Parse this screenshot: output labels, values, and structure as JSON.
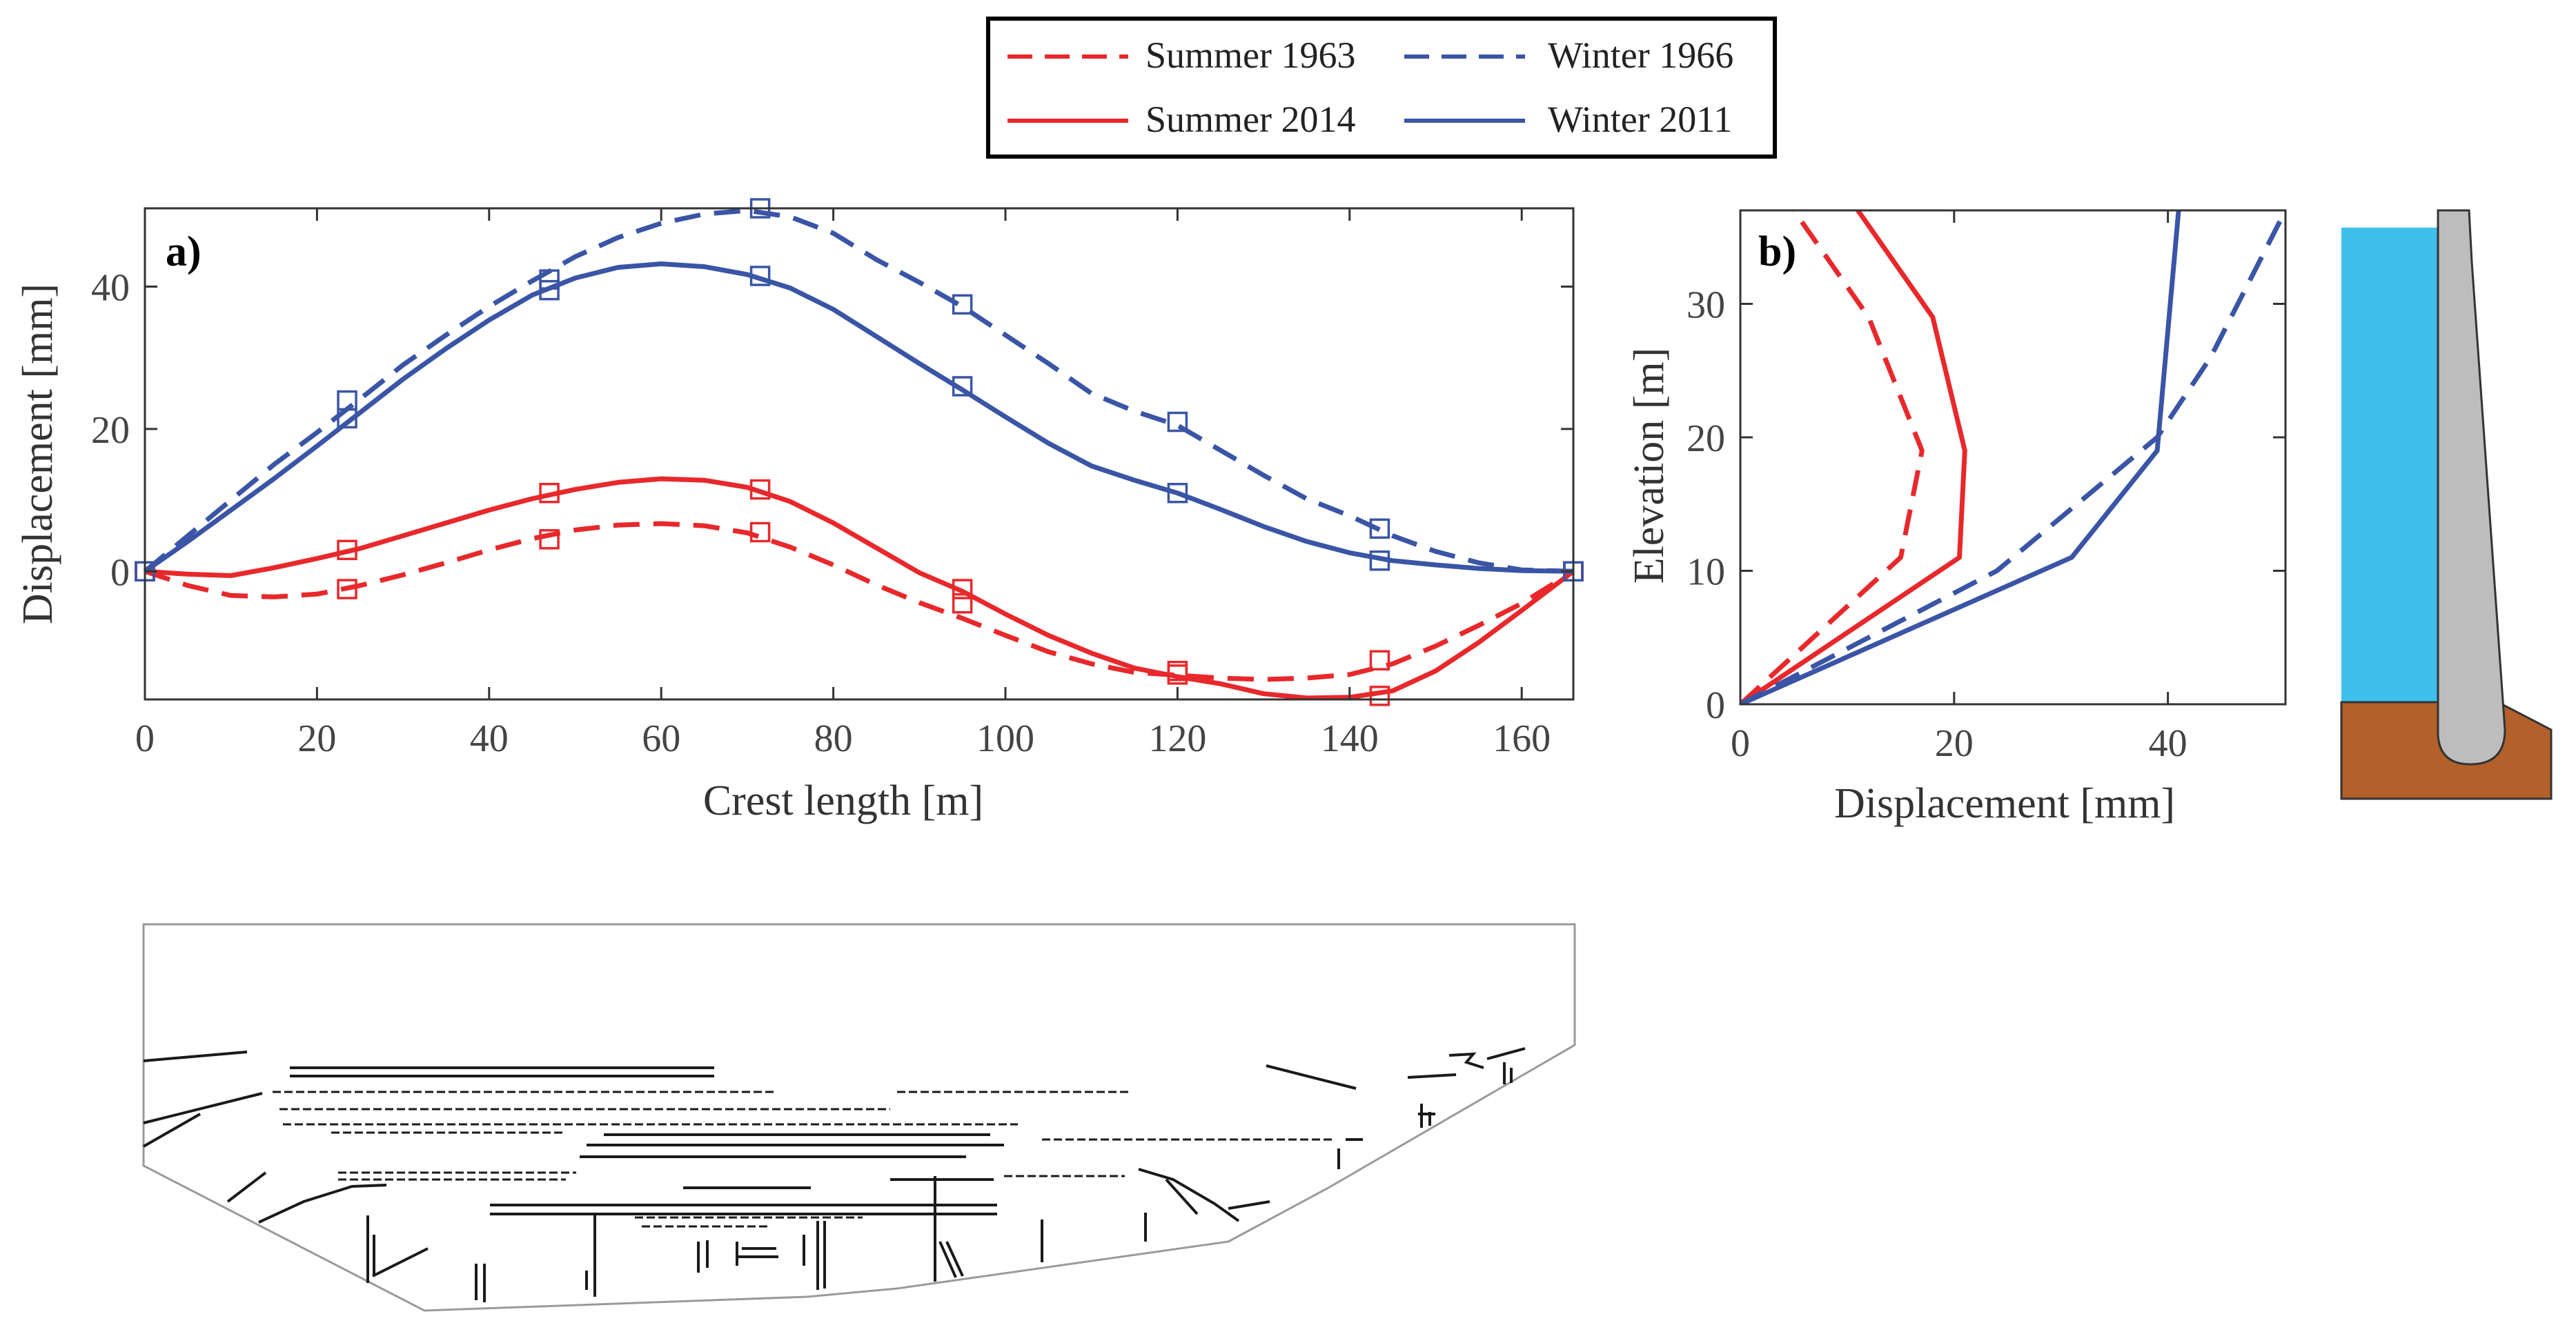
{
  "legend": {
    "entries": [
      {
        "label": "Summer 1963",
        "color": "#e8282b",
        "style": "dashed"
      },
      {
        "label": "Winter 1966",
        "color": "#3a55a6",
        "style": "dashed"
      },
      {
        "label": "Summer 2014",
        "color": "#e8282b",
        "style": "solid"
      },
      {
        "label": "Winter 2011",
        "color": "#3a55a6",
        "style": "solid"
      }
    ]
  },
  "colors": {
    "summer": "#e8282b",
    "winter": "#3a55a6",
    "water": "#3ec0ec",
    "dam": "#bdbdbd",
    "foundation": "#b3602a",
    "crack": "#1a1a1a",
    "outline": "#9a9a9a"
  },
  "chart_data": [
    {
      "type": "line",
      "panel_label": "a)",
      "xlabel": "Crest length [m]",
      "ylabel": "Displacement [mm]",
      "xlim": [
        0,
        166
      ],
      "ylim": [
        -18,
        51
      ],
      "xticks": [
        0,
        20,
        40,
        60,
        80,
        100,
        120,
        140,
        160
      ],
      "yticks": [
        0,
        20,
        40
      ],
      "grid": false,
      "series": [
        {
          "name": "Summer 1963",
          "color": "#e8282b",
          "style": "dashed",
          "x": [
            0,
            5,
            10,
            15,
            20,
            25,
            30,
            35,
            40,
            45,
            50,
            55,
            60,
            65,
            70,
            75,
            80,
            85,
            90,
            95,
            100,
            105,
            110,
            115,
            120,
            125,
            130,
            135,
            140,
            145,
            150,
            155,
            160,
            166
          ],
          "y": [
            0,
            -2,
            -3.4,
            -3.6,
            -3.2,
            -2,
            -0.5,
            1.2,
            3,
            4.6,
            5.8,
            6.5,
            6.7,
            6.4,
            5.4,
            3.4,
            0.9,
            -1.9,
            -4.4,
            -6.6,
            -9,
            -11.3,
            -13,
            -14.2,
            -14.6,
            -15,
            -15.2,
            -15,
            -14.5,
            -13,
            -10.5,
            -7.6,
            -4.5,
            0
          ],
          "markers": [
            [
              0,
              0
            ],
            [
              23.5,
              -2.5
            ],
            [
              47,
              4.5
            ],
            [
              71.5,
              5.5
            ],
            [
              95,
              -4.5
            ],
            [
              120,
              -14
            ],
            [
              143.5,
              -12.5
            ],
            [
              166,
              0
            ]
          ]
        },
        {
          "name": "Winter 1966",
          "color": "#3a55a6",
          "style": "dashed",
          "x": [
            0,
            5,
            10,
            15,
            20,
            25,
            30,
            35,
            40,
            45,
            50,
            55,
            60,
            65,
            70,
            75,
            80,
            85,
            90,
            95,
            100,
            105,
            110,
            115,
            120,
            125,
            130,
            135,
            140,
            145,
            150,
            155,
            160,
            166
          ],
          "y": [
            0,
            5,
            10,
            15,
            19.5,
            24.2,
            29,
            33.2,
            37.2,
            40.8,
            44.2,
            46.9,
            48.9,
            50.2,
            50.7,
            49.8,
            47.5,
            43.8,
            40.6,
            37.2,
            33.2,
            29.2,
            25,
            22.5,
            20.5,
            17,
            13.5,
            10.2,
            7.8,
            5,
            2.8,
            1.2,
            0.2,
            0
          ],
          "markers": [
            [
              0,
              0
            ],
            [
              23.5,
              24
            ],
            [
              47,
              41
            ],
            [
              71.5,
              51
            ],
            [
              95,
              37.5
            ],
            [
              120,
              21
            ],
            [
              143.5,
              6
            ],
            [
              166,
              0
            ]
          ]
        },
        {
          "name": "Summer 2014",
          "color": "#e8282b",
          "style": "solid",
          "x": [
            0,
            5,
            10,
            15,
            20,
            25,
            30,
            35,
            40,
            45,
            50,
            55,
            60,
            65,
            70,
            75,
            80,
            85,
            90,
            95,
            100,
            105,
            110,
            115,
            120,
            125,
            130,
            135,
            140,
            145,
            150,
            155,
            160,
            166
          ],
          "y": [
            0,
            -0.4,
            -0.6,
            0.5,
            1.8,
            3.2,
            5,
            6.8,
            8.6,
            10.2,
            11.5,
            12.5,
            13,
            12.8,
            11.8,
            9.8,
            6.8,
            3.3,
            -0.2,
            -2.8,
            -6,
            -9,
            -11.5,
            -13.6,
            -14.8,
            -15.8,
            -17.2,
            -17.8,
            -17.7,
            -16.8,
            -14,
            -10,
            -5.5,
            0
          ],
          "markers": [
            [
              0,
              0
            ],
            [
              23.5,
              3
            ],
            [
              47,
              11
            ],
            [
              71.5,
              11.5
            ],
            [
              95,
              -2.5
            ],
            [
              120,
              -14.5
            ],
            [
              143.5,
              -17.5
            ],
            [
              166,
              0
            ]
          ]
        },
        {
          "name": "Winter 2011",
          "color": "#3a55a6",
          "style": "solid",
          "x": [
            0,
            5,
            10,
            15,
            20,
            25,
            30,
            35,
            40,
            45,
            50,
            55,
            60,
            65,
            70,
            75,
            80,
            85,
            90,
            95,
            100,
            105,
            110,
            115,
            120,
            125,
            130,
            135,
            140,
            145,
            150,
            155,
            160,
            166
          ],
          "y": [
            0,
            4.2,
            8.6,
            13,
            17.6,
            22.3,
            27,
            31.3,
            35.3,
            38.8,
            41.2,
            42.7,
            43.2,
            42.8,
            41.7,
            39.8,
            36.8,
            33,
            29.2,
            25.5,
            21.7,
            18,
            14.8,
            12.8,
            11,
            8.7,
            6.3,
            4.2,
            2.6,
            1.5,
            0.9,
            0.4,
            0.1,
            0
          ],
          "markers": [
            [
              0,
              0
            ],
            [
              23.5,
              21.5
            ],
            [
              47,
              39.5
            ],
            [
              71.5,
              41.5
            ],
            [
              95,
              26
            ],
            [
              120,
              11
            ],
            [
              143.5,
              1.5
            ],
            [
              166,
              0
            ]
          ]
        }
      ]
    },
    {
      "type": "line",
      "panel_label": "b)",
      "xlabel": "Displacement [mm]",
      "ylabel": "Elevation [m]",
      "xlim": [
        0,
        51
      ],
      "ylim": [
        0,
        37
      ],
      "xticks": [
        0,
        20,
        40
      ],
      "yticks": [
        0,
        10,
        20,
        30
      ],
      "grid": false,
      "series": [
        {
          "name": "Summer 1963",
          "color": "#e8282b",
          "style": "dashed",
          "x": [
            0,
            15,
            17,
            12,
            5
          ],
          "y": [
            0,
            11,
            19,
            29,
            37
          ]
        },
        {
          "name": "Summer 2014",
          "color": "#e8282b",
          "style": "solid",
          "x": [
            0,
            20.5,
            21,
            18,
            11
          ],
          "y": [
            0,
            11,
            19,
            29,
            37
          ]
        },
        {
          "name": "Winter 1966",
          "color": "#3a55a6",
          "style": "dashed",
          "x": [
            0,
            24,
            39,
            44,
            51
          ],
          "y": [
            0,
            10,
            20,
            26,
            37
          ]
        },
        {
          "name": "Winter 2011",
          "color": "#3a55a6",
          "style": "solid",
          "x": [
            0,
            31,
            39,
            40,
            41
          ],
          "y": [
            0,
            11,
            19,
            28,
            37
          ]
        }
      ]
    }
  ]
}
